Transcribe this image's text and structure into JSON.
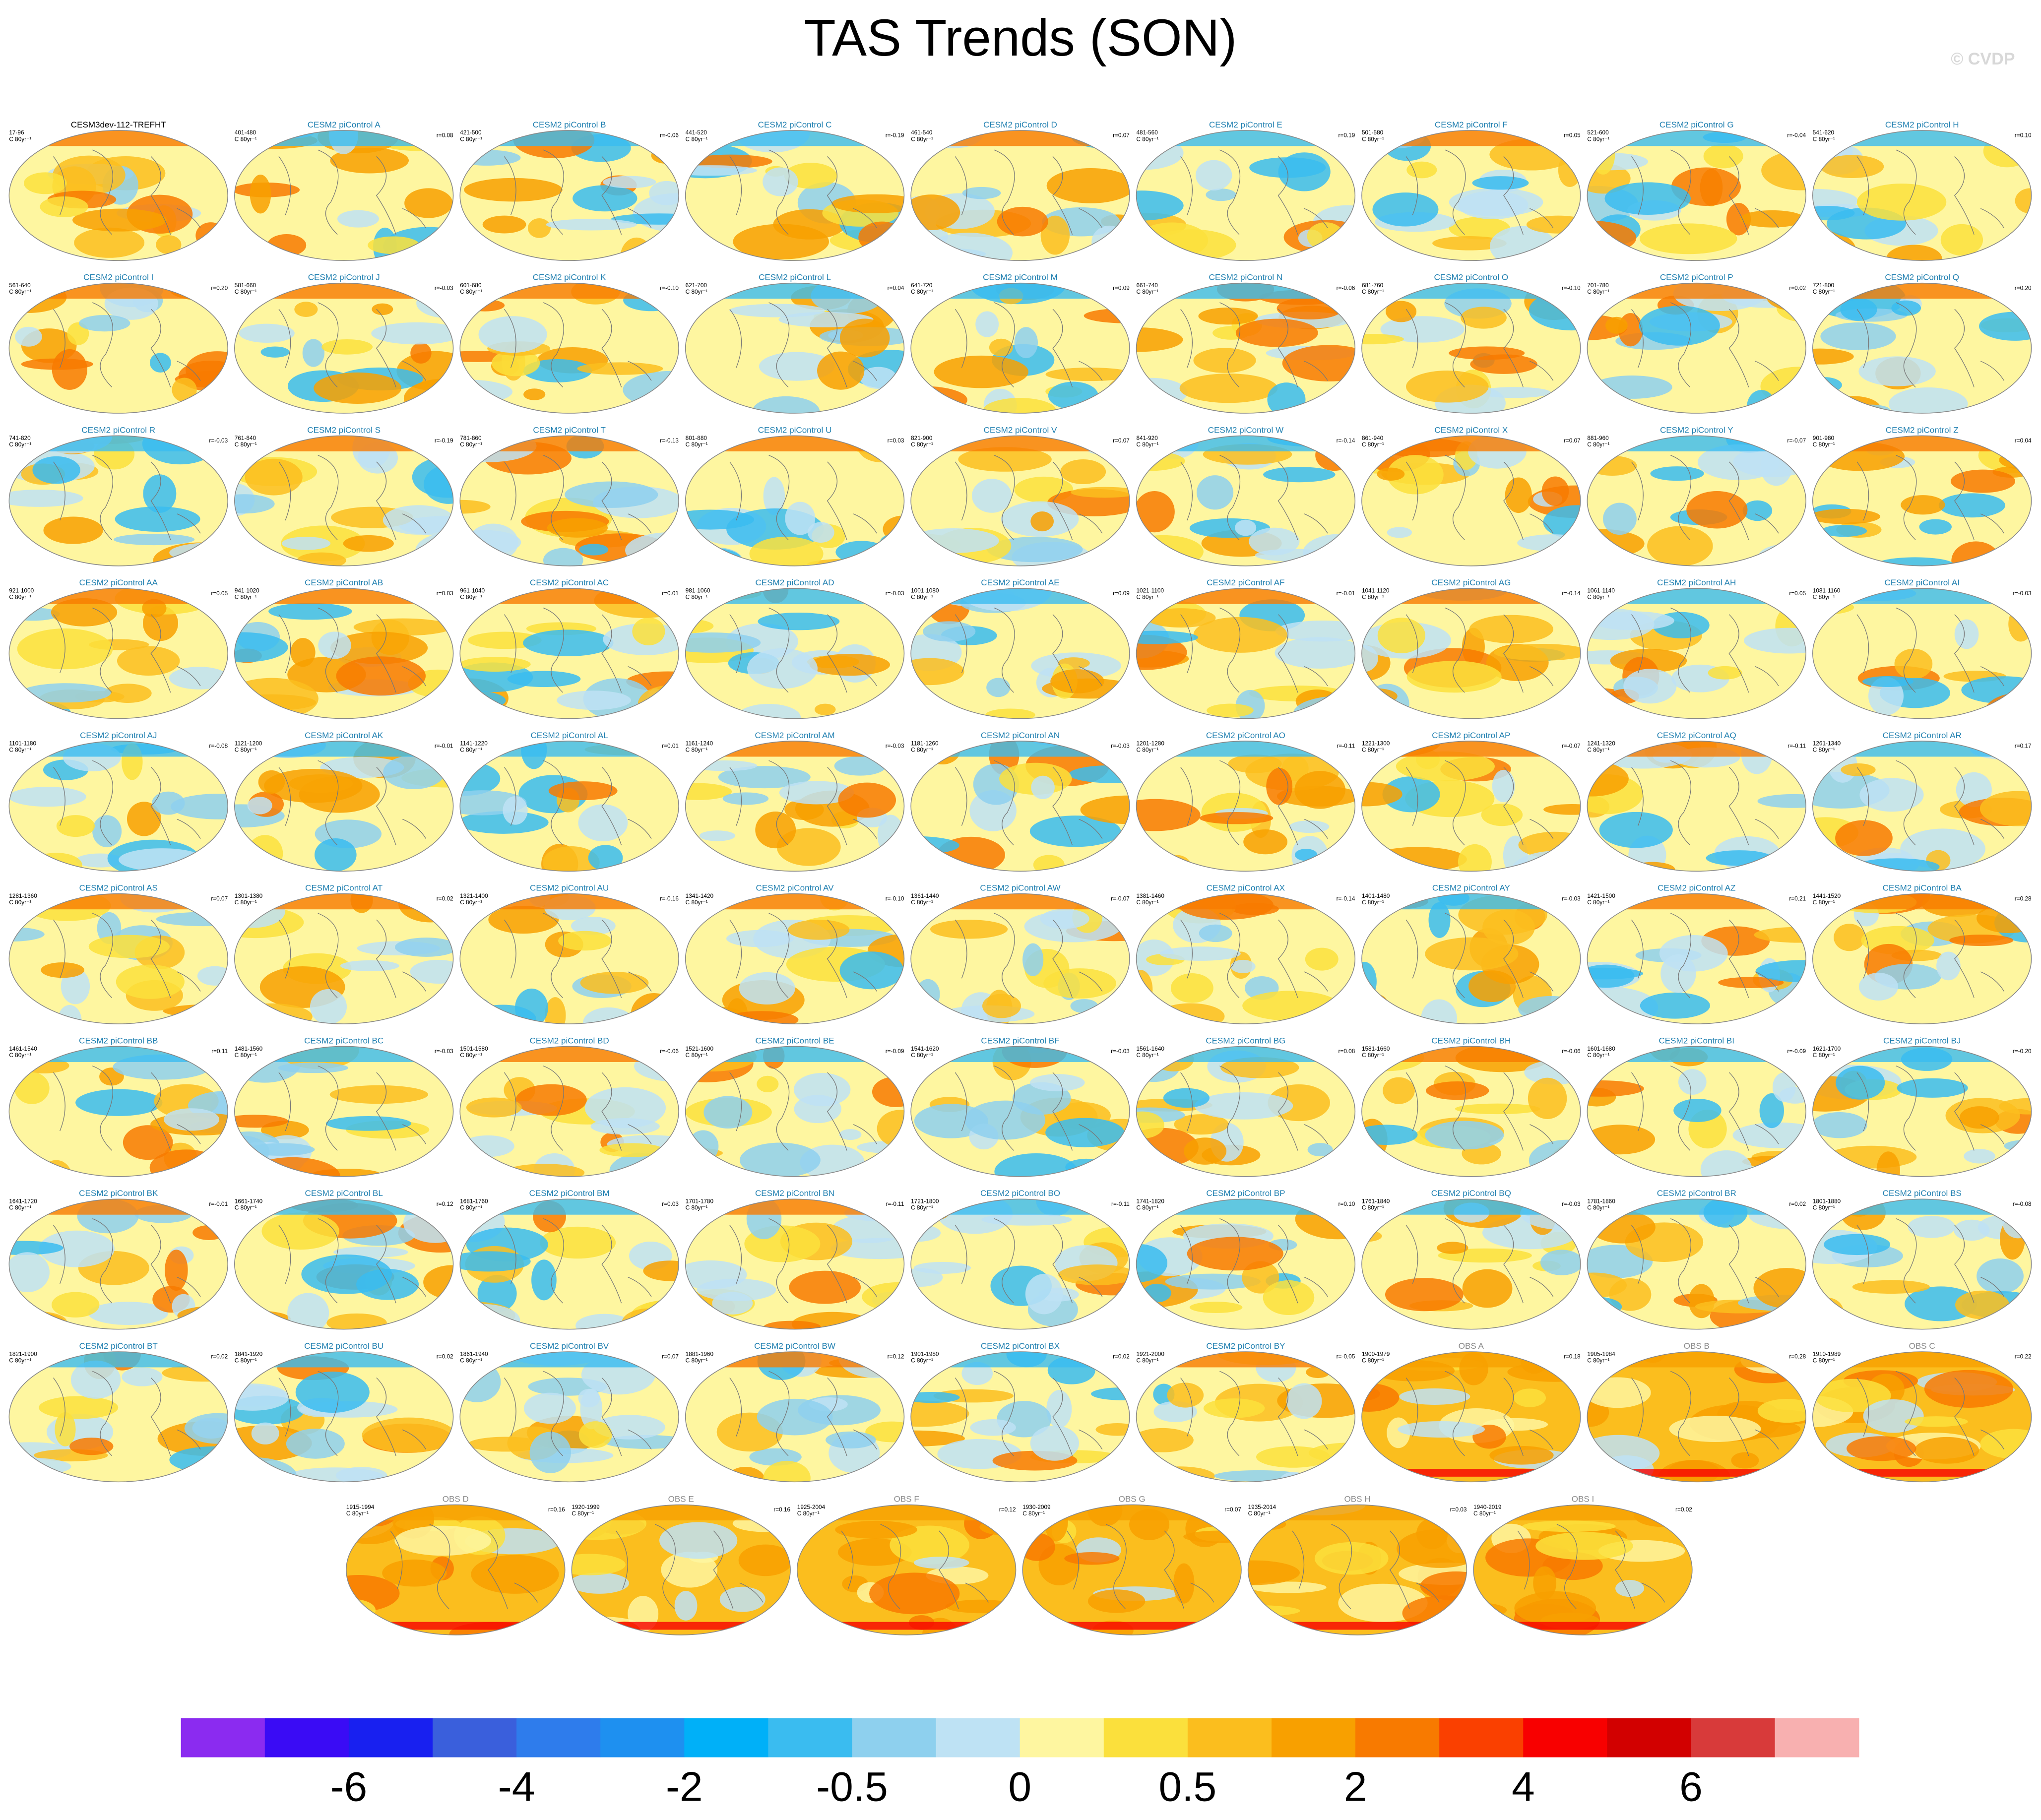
{
  "header": {
    "title": "TAS Trends (SON)",
    "watermark": "© CVDP"
  },
  "units": "C 80yr⁻¹",
  "panel_groups": [
    {
      "title_color": "#000000",
      "map_tone": "mixed",
      "panels": [
        [
          "CESM3dev-112-TREFHT",
          "17-96",
          null
        ]
      ]
    },
    {
      "title_color": "#1f7fb0",
      "map_tone": "mixed",
      "panels": [
        [
          "CESM2 piControl A",
          "401-480",
          "r=0.08"
        ],
        [
          "CESM2 piControl B",
          "421-500",
          "r=-0.06"
        ],
        [
          "CESM2 piControl C",
          "441-520",
          "r=-0.19"
        ],
        [
          "CESM2 piControl D",
          "461-540",
          "r=0.07"
        ],
        [
          "CESM2 piControl E",
          "481-560",
          "r=0.19"
        ],
        [
          "CESM2 piControl F",
          "501-580",
          "r=0.05"
        ],
        [
          "CESM2 piControl G",
          "521-600",
          "r=-0.04"
        ],
        [
          "CESM2 piControl H",
          "541-620",
          "r=0.10"
        ],
        [
          "CESM2 piControl I",
          "561-640",
          "r=0.20"
        ],
        [
          "CESM2 piControl J",
          "581-660",
          "r=-0.03"
        ],
        [
          "CESM2 piControl K",
          "601-680",
          "r=-0.10"
        ],
        [
          "CESM2 piControl L",
          "621-700",
          "r=0.04"
        ],
        [
          "CESM2 piControl M",
          "641-720",
          "r=0.09"
        ],
        [
          "CESM2 piControl N",
          "661-740",
          "r=-0.06"
        ],
        [
          "CESM2 piControl O",
          "681-760",
          "r=-0.10"
        ],
        [
          "CESM2 piControl P",
          "701-780",
          "r=0.02"
        ],
        [
          "CESM2 piControl Q",
          "721-800",
          "r=0.20"
        ],
        [
          "CESM2 piControl R",
          "741-820",
          "r=-0.03"
        ],
        [
          "CESM2 piControl S",
          "761-840",
          "r=-0.19"
        ],
        [
          "CESM2 piControl T",
          "781-860",
          "r=-0.13"
        ],
        [
          "CESM2 piControl U",
          "801-880",
          "r=0.03"
        ],
        [
          "CESM2 piControl V",
          "821-900",
          "r=0.07"
        ],
        [
          "CESM2 piControl W",
          "841-920",
          "r=-0.14"
        ],
        [
          "CESM2 piControl X",
          "861-940",
          "r=0.07"
        ],
        [
          "CESM2 piControl Y",
          "881-960",
          "r=-0.07"
        ],
        [
          "CESM2 piControl Z",
          "901-980",
          "r=0.04"
        ],
        [
          "CESM2 piControl AA",
          "921-1000",
          "r=0.05"
        ],
        [
          "CESM2 piControl AB",
          "941-1020",
          "r=0.03"
        ],
        [
          "CESM2 piControl AC",
          "961-1040",
          "r=0.01"
        ],
        [
          "CESM2 piControl AD",
          "981-1060",
          "r=-0.03"
        ],
        [
          "CESM2 piControl AE",
          "1001-1080",
          "r=0.09"
        ],
        [
          "CESM2 piControl AF",
          "1021-1100",
          "r=-0.01"
        ],
        [
          "CESM2 piControl AG",
          "1041-1120",
          "r=-0.14"
        ],
        [
          "CESM2 piControl AH",
          "1061-1140",
          "r=0.05"
        ],
        [
          "CESM2 piControl AI",
          "1081-1160",
          "r=-0.03"
        ],
        [
          "CESM2 piControl AJ",
          "1101-1180",
          "r=-0.08"
        ],
        [
          "CESM2 piControl AK",
          "1121-1200",
          "r=-0.01"
        ],
        [
          "CESM2 piControl AL",
          "1141-1220",
          "r=0.01"
        ],
        [
          "CESM2 piControl AM",
          "1161-1240",
          "r=-0.03"
        ],
        [
          "CESM2 piControl AN",
          "1181-1260",
          "r=-0.03"
        ],
        [
          "CESM2 piControl AO",
          "1201-1280",
          "r=-0.11"
        ],
        [
          "CESM2 piControl AP",
          "1221-1300",
          "r=-0.07"
        ],
        [
          "CESM2 piControl AQ",
          "1241-1320",
          "r=-0.11"
        ],
        [
          "CESM2 piControl AR",
          "1261-1340",
          "r=0.17"
        ],
        [
          "CESM2 piControl AS",
          "1281-1360",
          "r=0.07"
        ],
        [
          "CESM2 piControl AT",
          "1301-1380",
          "r=0.02"
        ],
        [
          "CESM2 piControl AU",
          "1321-1400",
          "r=-0.16"
        ],
        [
          "CESM2 piControl AV",
          "1341-1420",
          "r=-0.10"
        ],
        [
          "CESM2 piControl AW",
          "1361-1440",
          "r=-0.07"
        ],
        [
          "CESM2 piControl AX",
          "1381-1460",
          "r=-0.14"
        ],
        [
          "CESM2 piControl AY",
          "1401-1480",
          "r=-0.03"
        ],
        [
          "CESM2 piControl AZ",
          "1421-1500",
          "r=0.21"
        ],
        [
          "CESM2 piControl BA",
          "1441-1520",
          "r=0.28"
        ],
        [
          "CESM2 piControl BB",
          "1461-1540",
          "r=0.11"
        ],
        [
          "CESM2 piControl BC",
          "1481-1560",
          "r=-0.03"
        ],
        [
          "CESM2 piControl BD",
          "1501-1580",
          "r=-0.06"
        ],
        [
          "CESM2 piControl BE",
          "1521-1600",
          "r=-0.09"
        ],
        [
          "CESM2 piControl BF",
          "1541-1620",
          "r=-0.03"
        ],
        [
          "CESM2 piControl BG",
          "1561-1640",
          "r=0.08"
        ],
        [
          "CESM2 piControl BH",
          "1581-1660",
          "r=-0.06"
        ],
        [
          "CESM2 piControl BI",
          "1601-1680",
          "r=-0.09"
        ],
        [
          "CESM2 piControl BJ",
          "1621-1700",
          "r=-0.20"
        ],
        [
          "CESM2 piControl BK",
          "1641-1720",
          "r=-0.01"
        ],
        [
          "CESM2 piControl BL",
          "1661-1740",
          "r=0.12"
        ],
        [
          "CESM2 piControl BM",
          "1681-1760",
          "r=0.03"
        ],
        [
          "CESM2 piControl BN",
          "1701-1780",
          "r=-0.11"
        ],
        [
          "CESM2 piControl BO",
          "1721-1800",
          "r=-0.11"
        ],
        [
          "CESM2 piControl BP",
          "1741-1820",
          "r=0.10"
        ],
        [
          "CESM2 piControl BQ",
          "1761-1840",
          "r=-0.03"
        ],
        [
          "CESM2 piControl BR",
          "1781-1860",
          "r=0.02"
        ],
        [
          "CESM2 piControl BS",
          "1801-1880",
          "r=-0.08"
        ],
        [
          "CESM2 piControl BT",
          "1821-1900",
          "r=0.02"
        ],
        [
          "CESM2 piControl BU",
          "1841-1920",
          "r=0.02"
        ],
        [
          "CESM2 piControl BV",
          "1861-1940",
          "r=0.07"
        ],
        [
          "CESM2 piControl BW",
          "1881-1960",
          "r=0.12"
        ],
        [
          "CESM2 piControl BX",
          "1901-1980",
          "r=0.02"
        ],
        [
          "CESM2 piControl BY",
          "1921-2000",
          "r=-0.05"
        ]
      ]
    },
    {
      "title_color": "#8a8a8a",
      "map_tone": "warm",
      "panels": [
        [
          "OBS A",
          "1900-1979",
          "r=0.18"
        ],
        [
          "OBS B",
          "1905-1984",
          "r=0.28"
        ],
        [
          "OBS C",
          "1910-1989",
          "r=0.22"
        ],
        [
          "OBS D",
          "1915-1994",
          "r=0.16"
        ],
        [
          "OBS E",
          "1920-1999",
          "r=0.16"
        ],
        [
          "OBS F",
          "1925-2004",
          "r=0.12"
        ],
        [
          "OBS G",
          "1930-2009",
          "r=0.07"
        ],
        [
          "OBS H",
          "1935-2014",
          "r=0.03"
        ],
        [
          "OBS I",
          "1940-2019",
          "r=0.02"
        ]
      ]
    }
  ],
  "colorbar": {
    "colors": [
      "#8b2bf0",
      "#3a0bf5",
      "#1820f0",
      "#3a5fdc",
      "#2e7cec",
      "#1e90f0",
      "#00b0f8",
      "#3abcf0",
      "#8ed0ee",
      "#bee2f4",
      "#fef6a0",
      "#fbe03c",
      "#fbbe1e",
      "#f8a000",
      "#f87a00",
      "#fa4000",
      "#f80000",
      "#d20000",
      "#d83a3a",
      "#f8b0b0"
    ],
    "labels": [
      "-6",
      "-4",
      "-2",
      "-0.5",
      "0",
      "0.5",
      "2",
      "4",
      "6"
    ]
  }
}
